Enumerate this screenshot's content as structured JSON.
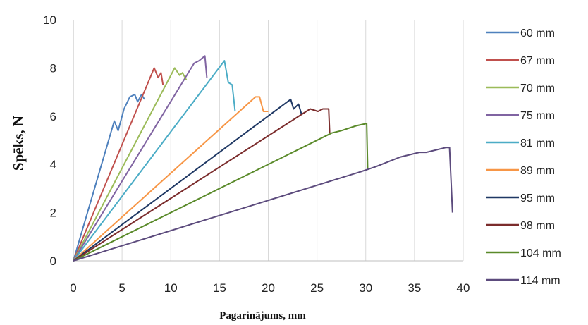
{
  "chart_data": {
    "type": "line",
    "xlabel": "Pagarinājums, mm",
    "ylabel": "Spēks, N",
    "xlim": [
      0,
      40
    ],
    "ylim": [
      0,
      10
    ],
    "xticks": [
      "0",
      "5",
      "10",
      "15",
      "20",
      "25",
      "30",
      "35",
      "40"
    ],
    "yticks": [
      "0",
      "2",
      "4",
      "6",
      "8",
      "10"
    ],
    "grid": "vertical",
    "legend": "right",
    "series": [
      {
        "name": "60 mm",
        "color": "#4F81BD",
        "points": [
          [
            0,
            0
          ],
          [
            4.2,
            5.8
          ],
          [
            4.6,
            5.4
          ],
          [
            5.2,
            6.3
          ],
          [
            5.8,
            6.8
          ],
          [
            6.3,
            6.9
          ],
          [
            6.6,
            6.6
          ],
          [
            7.0,
            6.9
          ],
          [
            7.3,
            6.7
          ]
        ]
      },
      {
        "name": "67 mm",
        "color": "#C0504D",
        "points": [
          [
            0,
            0
          ],
          [
            8.3,
            8.0
          ],
          [
            8.7,
            7.6
          ],
          [
            9.0,
            7.8
          ],
          [
            9.2,
            7.3
          ]
        ]
      },
      {
        "name": "70 mm",
        "color": "#9BBB59",
        "points": [
          [
            0,
            0
          ],
          [
            10.4,
            8.0
          ],
          [
            10.9,
            7.7
          ],
          [
            11.2,
            7.8
          ],
          [
            11.6,
            7.5
          ]
        ]
      },
      {
        "name": "75 mm",
        "color": "#8064A2",
        "points": [
          [
            0,
            0
          ],
          [
            12.4,
            8.2
          ],
          [
            12.9,
            8.3
          ],
          [
            13.5,
            8.5
          ],
          [
            13.7,
            7.6
          ]
        ]
      },
      {
        "name": "81 mm",
        "color": "#4BACC6",
        "points": [
          [
            0,
            0
          ],
          [
            15.5,
            8.3
          ],
          [
            15.9,
            7.4
          ],
          [
            16.3,
            7.3
          ],
          [
            16.6,
            6.2
          ]
        ]
      },
      {
        "name": "89 mm",
        "color": "#F79646",
        "points": [
          [
            0,
            0
          ],
          [
            18.7,
            6.8
          ],
          [
            19.1,
            6.8
          ],
          [
            19.5,
            6.2
          ],
          [
            20.0,
            6.2
          ]
        ]
      },
      {
        "name": "95 mm",
        "color": "#1F3864",
        "points": [
          [
            0,
            0
          ],
          [
            22.3,
            6.7
          ],
          [
            22.6,
            6.3
          ],
          [
            23.1,
            6.5
          ],
          [
            23.4,
            6.1
          ]
        ]
      },
      {
        "name": "98 mm",
        "color": "#7B2C2C",
        "points": [
          [
            0,
            0
          ],
          [
            24.3,
            6.3
          ],
          [
            25.1,
            6.2
          ],
          [
            25.6,
            6.3
          ],
          [
            26.2,
            6.3
          ],
          [
            26.3,
            5.3
          ]
        ]
      },
      {
        "name": "104 mm",
        "color": "#5A8A2A",
        "points": [
          [
            0,
            0
          ],
          [
            26.5,
            5.3
          ],
          [
            27.5,
            5.4
          ],
          [
            29.0,
            5.6
          ],
          [
            30.1,
            5.7
          ],
          [
            30.2,
            3.8
          ]
        ]
      },
      {
        "name": "114 mm",
        "color": "#5C4B7D",
        "points": [
          [
            0,
            0
          ],
          [
            29.5,
            3.7
          ],
          [
            31.0,
            3.9
          ],
          [
            33.5,
            4.3
          ],
          [
            35.5,
            4.5
          ],
          [
            36.2,
            4.5
          ],
          [
            38.2,
            4.7
          ],
          [
            38.6,
            4.7
          ],
          [
            38.9,
            2.0
          ]
        ]
      }
    ]
  }
}
